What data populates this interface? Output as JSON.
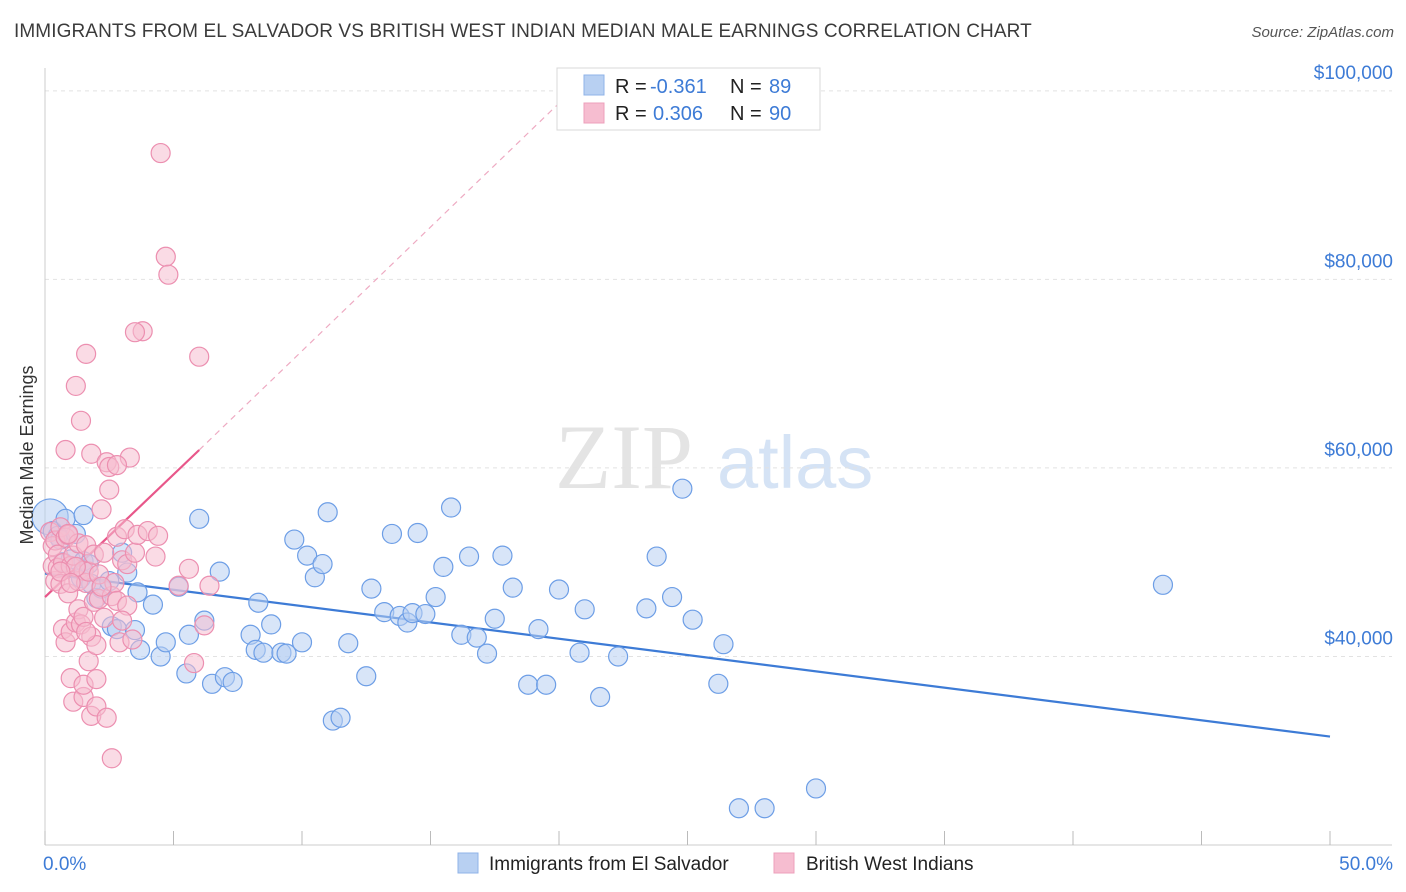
{
  "header": {
    "title": "IMMIGRANTS FROM EL SALVADOR VS BRITISH WEST INDIAN MEDIAN MALE EARNINGS CORRELATION CHART",
    "source": "Source: ZipAtlas.com"
  },
  "watermark": {
    "part1": "ZIP",
    "part2": "atlas"
  },
  "colors": {
    "blue": "#3d7bd6",
    "blue_fill": "#b8d0f2",
    "pink": "#e8578a",
    "pink_fill": "#f6bdd0",
    "grid": "#e2e2e2"
  },
  "legend": {
    "rows": [
      {
        "r_label": "R =",
        "r_value": "-0.361",
        "n_label": "N =",
        "n_value": "89"
      },
      {
        "r_label": "R =",
        "r_value": "0.306",
        "n_label": "N =",
        "n_value": "90"
      }
    ]
  },
  "bottom_legend": [
    "Immigrants from El Salvador",
    "British West Indians"
  ],
  "chart_data": {
    "type": "scatter",
    "ylabel": "Median Male Earnings",
    "xlim": [
      0,
      50
    ],
    "ylim": [
      20000,
      102000
    ],
    "x_tick_labels": [
      "0.0%",
      "50.0%"
    ],
    "y_ticks": [
      {
        "value": 40000,
        "label": "$40,000"
      },
      {
        "value": 60000,
        "label": "$60,000"
      },
      {
        "value": 80000,
        "label": "$80,000"
      },
      {
        "value": 100000,
        "label": "$100,000"
      }
    ],
    "grid": true,
    "series": [
      {
        "name": "Immigrants from El Salvador",
        "color": "blue",
        "trend": {
          "x": [
            0,
            50
          ],
          "y": [
            48800,
            31500
          ]
        },
        "points": [
          [
            0.2,
            54800
          ],
          [
            0.3,
            53300
          ],
          [
            0.5,
            52800
          ],
          [
            0.6,
            52400
          ],
          [
            0.7,
            50000
          ],
          [
            0.8,
            54600
          ],
          [
            1.0,
            50300
          ],
          [
            1.2,
            53000
          ],
          [
            1.4,
            48300
          ],
          [
            1.5,
            55000
          ],
          [
            1.5,
            50100
          ],
          [
            1.7,
            49800
          ],
          [
            1.8,
            47700
          ],
          [
            2.0,
            46200
          ],
          [
            2.2,
            47200
          ],
          [
            2.5,
            48000
          ],
          [
            2.6,
            43200
          ],
          [
            2.8,
            42900
          ],
          [
            3.0,
            51000
          ],
          [
            3.2,
            48900
          ],
          [
            3.5,
            42800
          ],
          [
            3.6,
            46800
          ],
          [
            3.7,
            40700
          ],
          [
            4.2,
            45500
          ],
          [
            4.5,
            40000
          ],
          [
            4.7,
            41500
          ],
          [
            5.2,
            47400
          ],
          [
            5.5,
            38200
          ],
          [
            5.6,
            42300
          ],
          [
            6.0,
            54600
          ],
          [
            6.2,
            43800
          ],
          [
            6.5,
            37100
          ],
          [
            6.8,
            49000
          ],
          [
            7.0,
            37800
          ],
          [
            7.3,
            37300
          ],
          [
            8.0,
            42300
          ],
          [
            8.2,
            40700
          ],
          [
            8.3,
            45700
          ],
          [
            8.5,
            40400
          ],
          [
            8.8,
            43400
          ],
          [
            9.2,
            40400
          ],
          [
            9.4,
            40300
          ],
          [
            9.7,
            52400
          ],
          [
            10.0,
            41500
          ],
          [
            10.2,
            50700
          ],
          [
            10.5,
            48400
          ],
          [
            10.8,
            49800
          ],
          [
            11.0,
            55300
          ],
          [
            11.2,
            33200
          ],
          [
            11.5,
            33500
          ],
          [
            11.8,
            41400
          ],
          [
            12.5,
            37900
          ],
          [
            12.7,
            47200
          ],
          [
            13.2,
            44700
          ],
          [
            13.5,
            53000
          ],
          [
            13.8,
            44300
          ],
          [
            14.1,
            43600
          ],
          [
            14.3,
            44600
          ],
          [
            14.5,
            53100
          ],
          [
            14.8,
            44500
          ],
          [
            15.2,
            46300
          ],
          [
            15.5,
            49500
          ],
          [
            15.8,
            55800
          ],
          [
            16.2,
            42300
          ],
          [
            16.5,
            50600
          ],
          [
            16.8,
            42000
          ],
          [
            17.2,
            40300
          ],
          [
            17.5,
            44000
          ],
          [
            17.8,
            50700
          ],
          [
            18.2,
            47300
          ],
          [
            18.8,
            37000
          ],
          [
            19.2,
            42900
          ],
          [
            19.5,
            37000
          ],
          [
            20.0,
            47100
          ],
          [
            20.8,
            40400
          ],
          [
            21.0,
            45000
          ],
          [
            21.6,
            35700
          ],
          [
            22.3,
            40000
          ],
          [
            23.4,
            45100
          ],
          [
            23.8,
            50600
          ],
          [
            24.4,
            46300
          ],
          [
            24.8,
            57800
          ],
          [
            25.2,
            43900
          ],
          [
            26.2,
            37100
          ],
          [
            26.4,
            41300
          ],
          [
            27.0,
            23900
          ],
          [
            28.0,
            23900
          ],
          [
            30.0,
            26000
          ],
          [
            43.5,
            47600
          ]
        ]
      },
      {
        "name": "British West Indians",
        "color": "pink",
        "trend": {
          "x": [
            0,
            6.0
          ],
          "y": [
            46300,
            61900
          ],
          "dashed_x": [
            6.0,
            20.5
          ],
          "dashed_y": [
            61900,
            100000
          ]
        },
        "points": [
          [
            0.2,
            53200
          ],
          [
            0.3,
            51700
          ],
          [
            0.3,
            49600
          ],
          [
            0.4,
            48000
          ],
          [
            0.4,
            52300
          ],
          [
            0.5,
            50800
          ],
          [
            0.5,
            49400
          ],
          [
            0.6,
            47700
          ],
          [
            0.6,
            53700
          ],
          [
            0.7,
            42900
          ],
          [
            0.7,
            49900
          ],
          [
            0.8,
            61900
          ],
          [
            0.8,
            52600
          ],
          [
            0.8,
            41500
          ],
          [
            0.9,
            46700
          ],
          [
            0.9,
            52900
          ],
          [
            1.0,
            37700
          ],
          [
            1.0,
            42600
          ],
          [
            1.0,
            49600
          ],
          [
            1.1,
            35200
          ],
          [
            1.1,
            50700
          ],
          [
            1.2,
            68700
          ],
          [
            1.2,
            43600
          ],
          [
            1.3,
            45000
          ],
          [
            1.3,
            48000
          ],
          [
            1.3,
            52000
          ],
          [
            1.4,
            65000
          ],
          [
            1.4,
            43400
          ],
          [
            1.5,
            35700
          ],
          [
            1.5,
            44200
          ],
          [
            1.5,
            49100
          ],
          [
            1.5,
            37000
          ],
          [
            1.6,
            72100
          ],
          [
            1.6,
            47800
          ],
          [
            1.6,
            51800
          ],
          [
            1.7,
            39500
          ],
          [
            1.7,
            49000
          ],
          [
            1.8,
            61500
          ],
          [
            1.8,
            33700
          ],
          [
            1.8,
            42100
          ],
          [
            1.9,
            50800
          ],
          [
            1.9,
            45800
          ],
          [
            2.0,
            34700
          ],
          [
            2.0,
            41200
          ],
          [
            2.0,
            37600
          ],
          [
            2.1,
            48700
          ],
          [
            2.1,
            46100
          ],
          [
            2.2,
            55600
          ],
          [
            2.3,
            44100
          ],
          [
            2.3,
            51000
          ],
          [
            2.4,
            33500
          ],
          [
            2.4,
            60600
          ],
          [
            2.5,
            60100
          ],
          [
            2.5,
            57700
          ],
          [
            2.6,
            29200
          ],
          [
            2.6,
            46400
          ],
          [
            2.7,
            47800
          ],
          [
            2.8,
            52700
          ],
          [
            2.8,
            45900
          ],
          [
            2.9,
            41500
          ],
          [
            3.0,
            50200
          ],
          [
            3.1,
            53500
          ],
          [
            3.2,
            49800
          ],
          [
            3.2,
            45400
          ],
          [
            3.3,
            61100
          ],
          [
            3.4,
            41800
          ],
          [
            3.5,
            51000
          ],
          [
            3.6,
            52900
          ],
          [
            3.8,
            74500
          ],
          [
            4.0,
            53300
          ],
          [
            4.3,
            50600
          ],
          [
            4.5,
            93400
          ],
          [
            4.7,
            82400
          ],
          [
            4.8,
            80500
          ],
          [
            5.2,
            47500
          ],
          [
            5.6,
            49300
          ],
          [
            5.8,
            39300
          ],
          [
            6.0,
            71800
          ],
          [
            6.2,
            43300
          ],
          [
            6.4,
            47500
          ],
          [
            3.5,
            74400
          ],
          [
            2.8,
            60300
          ],
          [
            1.2,
            49500
          ],
          [
            0.9,
            53000
          ],
          [
            2.2,
            47400
          ],
          [
            1.6,
            42600
          ],
          [
            0.6,
            49000
          ],
          [
            1.0,
            47800
          ],
          [
            4.4,
            52800
          ],
          [
            3.0,
            43800
          ]
        ]
      }
    ]
  }
}
